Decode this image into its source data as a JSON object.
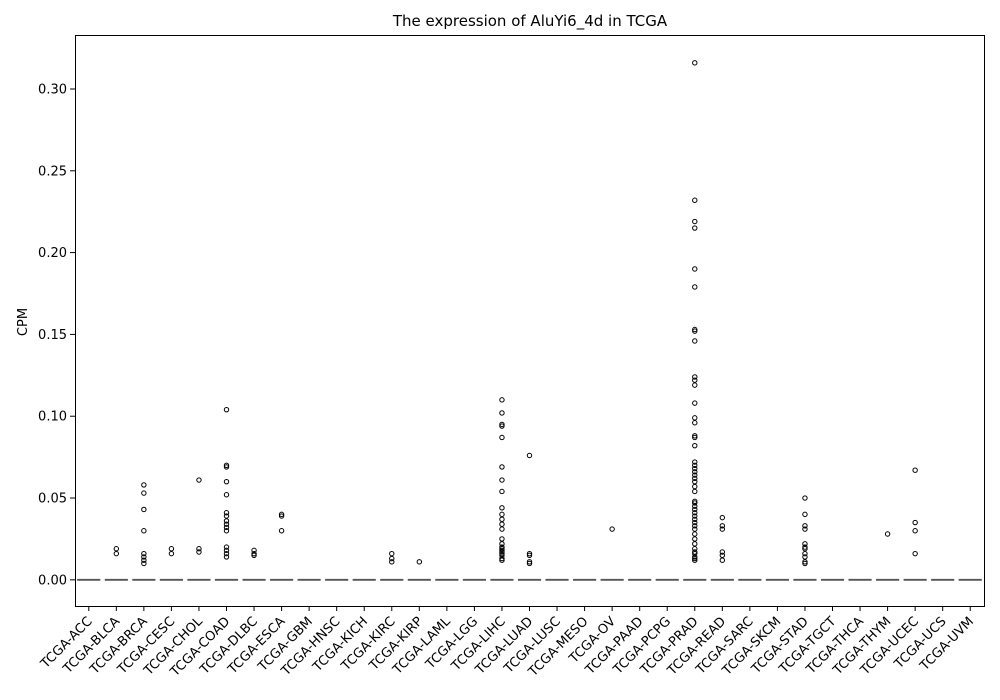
{
  "chart_data": {
    "type": "box",
    "title": "The expression of AluYi6_4d in TCGA",
    "xlabel": "",
    "ylabel": "CPM",
    "ylim": [
      -0.016,
      0.333
    ],
    "yticks": [
      "0.00",
      "0.05",
      "0.10",
      "0.15",
      "0.20",
      "0.25",
      "0.30"
    ],
    "grid": false,
    "median_color": "#555555",
    "categories": [
      "TCGA-ACC",
      "TCGA-BLCA",
      "TCGA-BRCA",
      "TCGA-CESC",
      "TCGA-CHOL",
      "TCGA-COAD",
      "TCGA-DLBC",
      "TCGA-ESCA",
      "TCGA-GBM",
      "TCGA-HNSC",
      "TCGA-KICH",
      "TCGA-KIRC",
      "TCGA-KIRP",
      "TCGA-LAML",
      "TCGA-LGG",
      "TCGA-LIHC",
      "TCGA-LUAD",
      "TCGA-LUSC",
      "TCGA-MESO",
      "TCGA-OV",
      "TCGA-PAAD",
      "TCGA-PCPG",
      "TCGA-PRAD",
      "TCGA-READ",
      "TCGA-SARC",
      "TCGA-SKCM",
      "TCGA-STAD",
      "TCGA-TGCT",
      "TCGA-THCA",
      "TCGA-THYM",
      "TCGA-UCEC",
      "TCGA-UCS",
      "TCGA-UVM"
    ],
    "medians": [
      0,
      0,
      0,
      0,
      0,
      0,
      0,
      0,
      0,
      0,
      0,
      0,
      0,
      0,
      0,
      0,
      0,
      0,
      0,
      0,
      0,
      0,
      0,
      0,
      0,
      0,
      0,
      0,
      0,
      0,
      0,
      0,
      0
    ],
    "outliers": [
      [],
      [
        0.016,
        0.019
      ],
      [
        0.058,
        0.053,
        0.043,
        0.03,
        0.016,
        0.014,
        0.012,
        0.01
      ],
      [
        0.016,
        0.019
      ],
      [
        0.061,
        0.019,
        0.017
      ],
      [
        0.104,
        0.07,
        0.069,
        0.06,
        0.052,
        0.041,
        0.039,
        0.036,
        0.034,
        0.032,
        0.03,
        0.02,
        0.018,
        0.016,
        0.014
      ],
      [
        0.018,
        0.016,
        0.015
      ],
      [
        0.04,
        0.039,
        0.03
      ],
      [],
      [],
      [],
      [
        0.016,
        0.013,
        0.011
      ],
      [
        0.011
      ],
      [],
      [],
      [
        0.11,
        0.102,
        0.095,
        0.094,
        0.087,
        0.069,
        0.061,
        0.054,
        0.044,
        0.04,
        0.037,
        0.034,
        0.031,
        0.025,
        0.022,
        0.02,
        0.019,
        0.018,
        0.017,
        0.016,
        0.015,
        0.013,
        0.012
      ],
      [
        0.076,
        0.016,
        0.015,
        0.011,
        0.01
      ],
      [],
      [],
      [
        0.031
      ],
      [],
      [],
      [
        0.316,
        0.232,
        0.219,
        0.215,
        0.19,
        0.179,
        0.153,
        0.152,
        0.146,
        0.124,
        0.122,
        0.119,
        0.108,
        0.099,
        0.096,
        0.088,
        0.087,
        0.082,
        0.072,
        0.07,
        0.068,
        0.066,
        0.064,
        0.062,
        0.06,
        0.057,
        0.054,
        0.048,
        0.047,
        0.045,
        0.043,
        0.041,
        0.039,
        0.037,
        0.035,
        0.033,
        0.031,
        0.028,
        0.025,
        0.022,
        0.019,
        0.017,
        0.016,
        0.014,
        0.013,
        0.012
      ],
      [
        0.038,
        0.033,
        0.031,
        0.017,
        0.015,
        0.012
      ],
      [],
      [],
      [
        0.05,
        0.04,
        0.033,
        0.031,
        0.022,
        0.02,
        0.019,
        0.016,
        0.014,
        0.011,
        0.01
      ],
      [],
      [],
      [
        0.028
      ],
      [
        0.067,
        0.035,
        0.03,
        0.016
      ],
      [],
      []
    ]
  }
}
